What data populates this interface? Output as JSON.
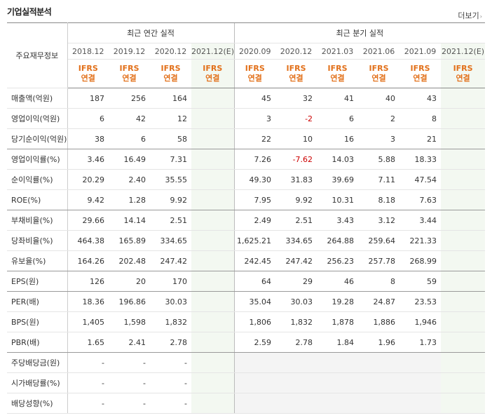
{
  "title": "기업실적분석",
  "more": "더보기",
  "headers": {
    "row_head": "주요재무정보",
    "annual": "최근 연간 실적",
    "quarter": "최근 분기 실적",
    "periods": [
      "2018.12",
      "2019.12",
      "2020.12",
      "2021.12(E)",
      "2020.09",
      "2020.12",
      "2021.03",
      "2021.06",
      "2021.09",
      "2021.12(E)"
    ],
    "standard_line1": "IFRS",
    "standard_line2": "연결"
  },
  "rows": [
    {
      "label": "매출액(억원)",
      "values": [
        "187",
        "256",
        "164",
        "",
        "45",
        "32",
        "41",
        "40",
        "43",
        ""
      ]
    },
    {
      "label": "영업이익(억원)",
      "values": [
        "6",
        "42",
        "12",
        "",
        "3",
        "-2",
        "6",
        "2",
        "8",
        ""
      ]
    },
    {
      "label": "당기순이익(억원)",
      "values": [
        "38",
        "6",
        "58",
        "",
        "22",
        "10",
        "16",
        "3",
        "21",
        ""
      ]
    },
    {
      "label": "영업이익률(%)",
      "values": [
        "3.46",
        "16.49",
        "7.31",
        "",
        "7.26",
        "-7.62",
        "14.03",
        "5.88",
        "18.33",
        ""
      ]
    },
    {
      "label": "순이익률(%)",
      "values": [
        "20.29",
        "2.40",
        "35.55",
        "",
        "49.30",
        "31.83",
        "39.69",
        "7.11",
        "47.54",
        ""
      ]
    },
    {
      "label": "ROE(%)",
      "values": [
        "9.42",
        "1.28",
        "9.92",
        "",
        "7.95",
        "9.92",
        "10.31",
        "8.18",
        "7.63",
        ""
      ]
    },
    {
      "label": "부채비율(%)",
      "values": [
        "29.66",
        "14.14",
        "2.51",
        "",
        "2.49",
        "2.51",
        "3.43",
        "3.12",
        "3.44",
        ""
      ]
    },
    {
      "label": "당좌비율(%)",
      "values": [
        "464.38",
        "165.89",
        "334.65",
        "",
        "1,625.21",
        "334.65",
        "264.88",
        "259.64",
        "221.33",
        ""
      ]
    },
    {
      "label": "유보율(%)",
      "values": [
        "164.26",
        "202.48",
        "247.42",
        "",
        "242.45",
        "247.42",
        "256.23",
        "257.78",
        "268.99",
        ""
      ]
    },
    {
      "label": "EPS(원)",
      "values": [
        "126",
        "20",
        "170",
        "",
        "64",
        "29",
        "46",
        "8",
        "59",
        ""
      ]
    },
    {
      "label": "PER(배)",
      "values": [
        "18.36",
        "196.86",
        "30.03",
        "",
        "35.04",
        "30.03",
        "19.28",
        "24.87",
        "23.53",
        ""
      ]
    },
    {
      "label": "BPS(원)",
      "values": [
        "1,405",
        "1,598",
        "1,832",
        "",
        "1,806",
        "1,832",
        "1,878",
        "1,886",
        "1,946",
        ""
      ]
    },
    {
      "label": "PBR(배)",
      "values": [
        "1.65",
        "2.41",
        "2.78",
        "",
        "2.59",
        "2.78",
        "1.84",
        "1.96",
        "1.73",
        ""
      ]
    },
    {
      "label": "주당배당금(원)",
      "values": [
        "-",
        "-",
        "-",
        "",
        "",
        "",
        "",
        "",
        "",
        ""
      ]
    },
    {
      "label": "시가배당률(%)",
      "values": [
        "-",
        "-",
        "-",
        "",
        "",
        "",
        "",
        "",
        "",
        ""
      ]
    },
    {
      "label": "배당성향(%)",
      "values": [
        "-",
        "-",
        "-",
        "",
        "",
        "",
        "",
        "",
        "",
        ""
      ]
    }
  ],
  "colors": {
    "accent": "#e2701a",
    "negative": "#cc0000",
    "estimate_bg": "#f3f8f1"
  }
}
